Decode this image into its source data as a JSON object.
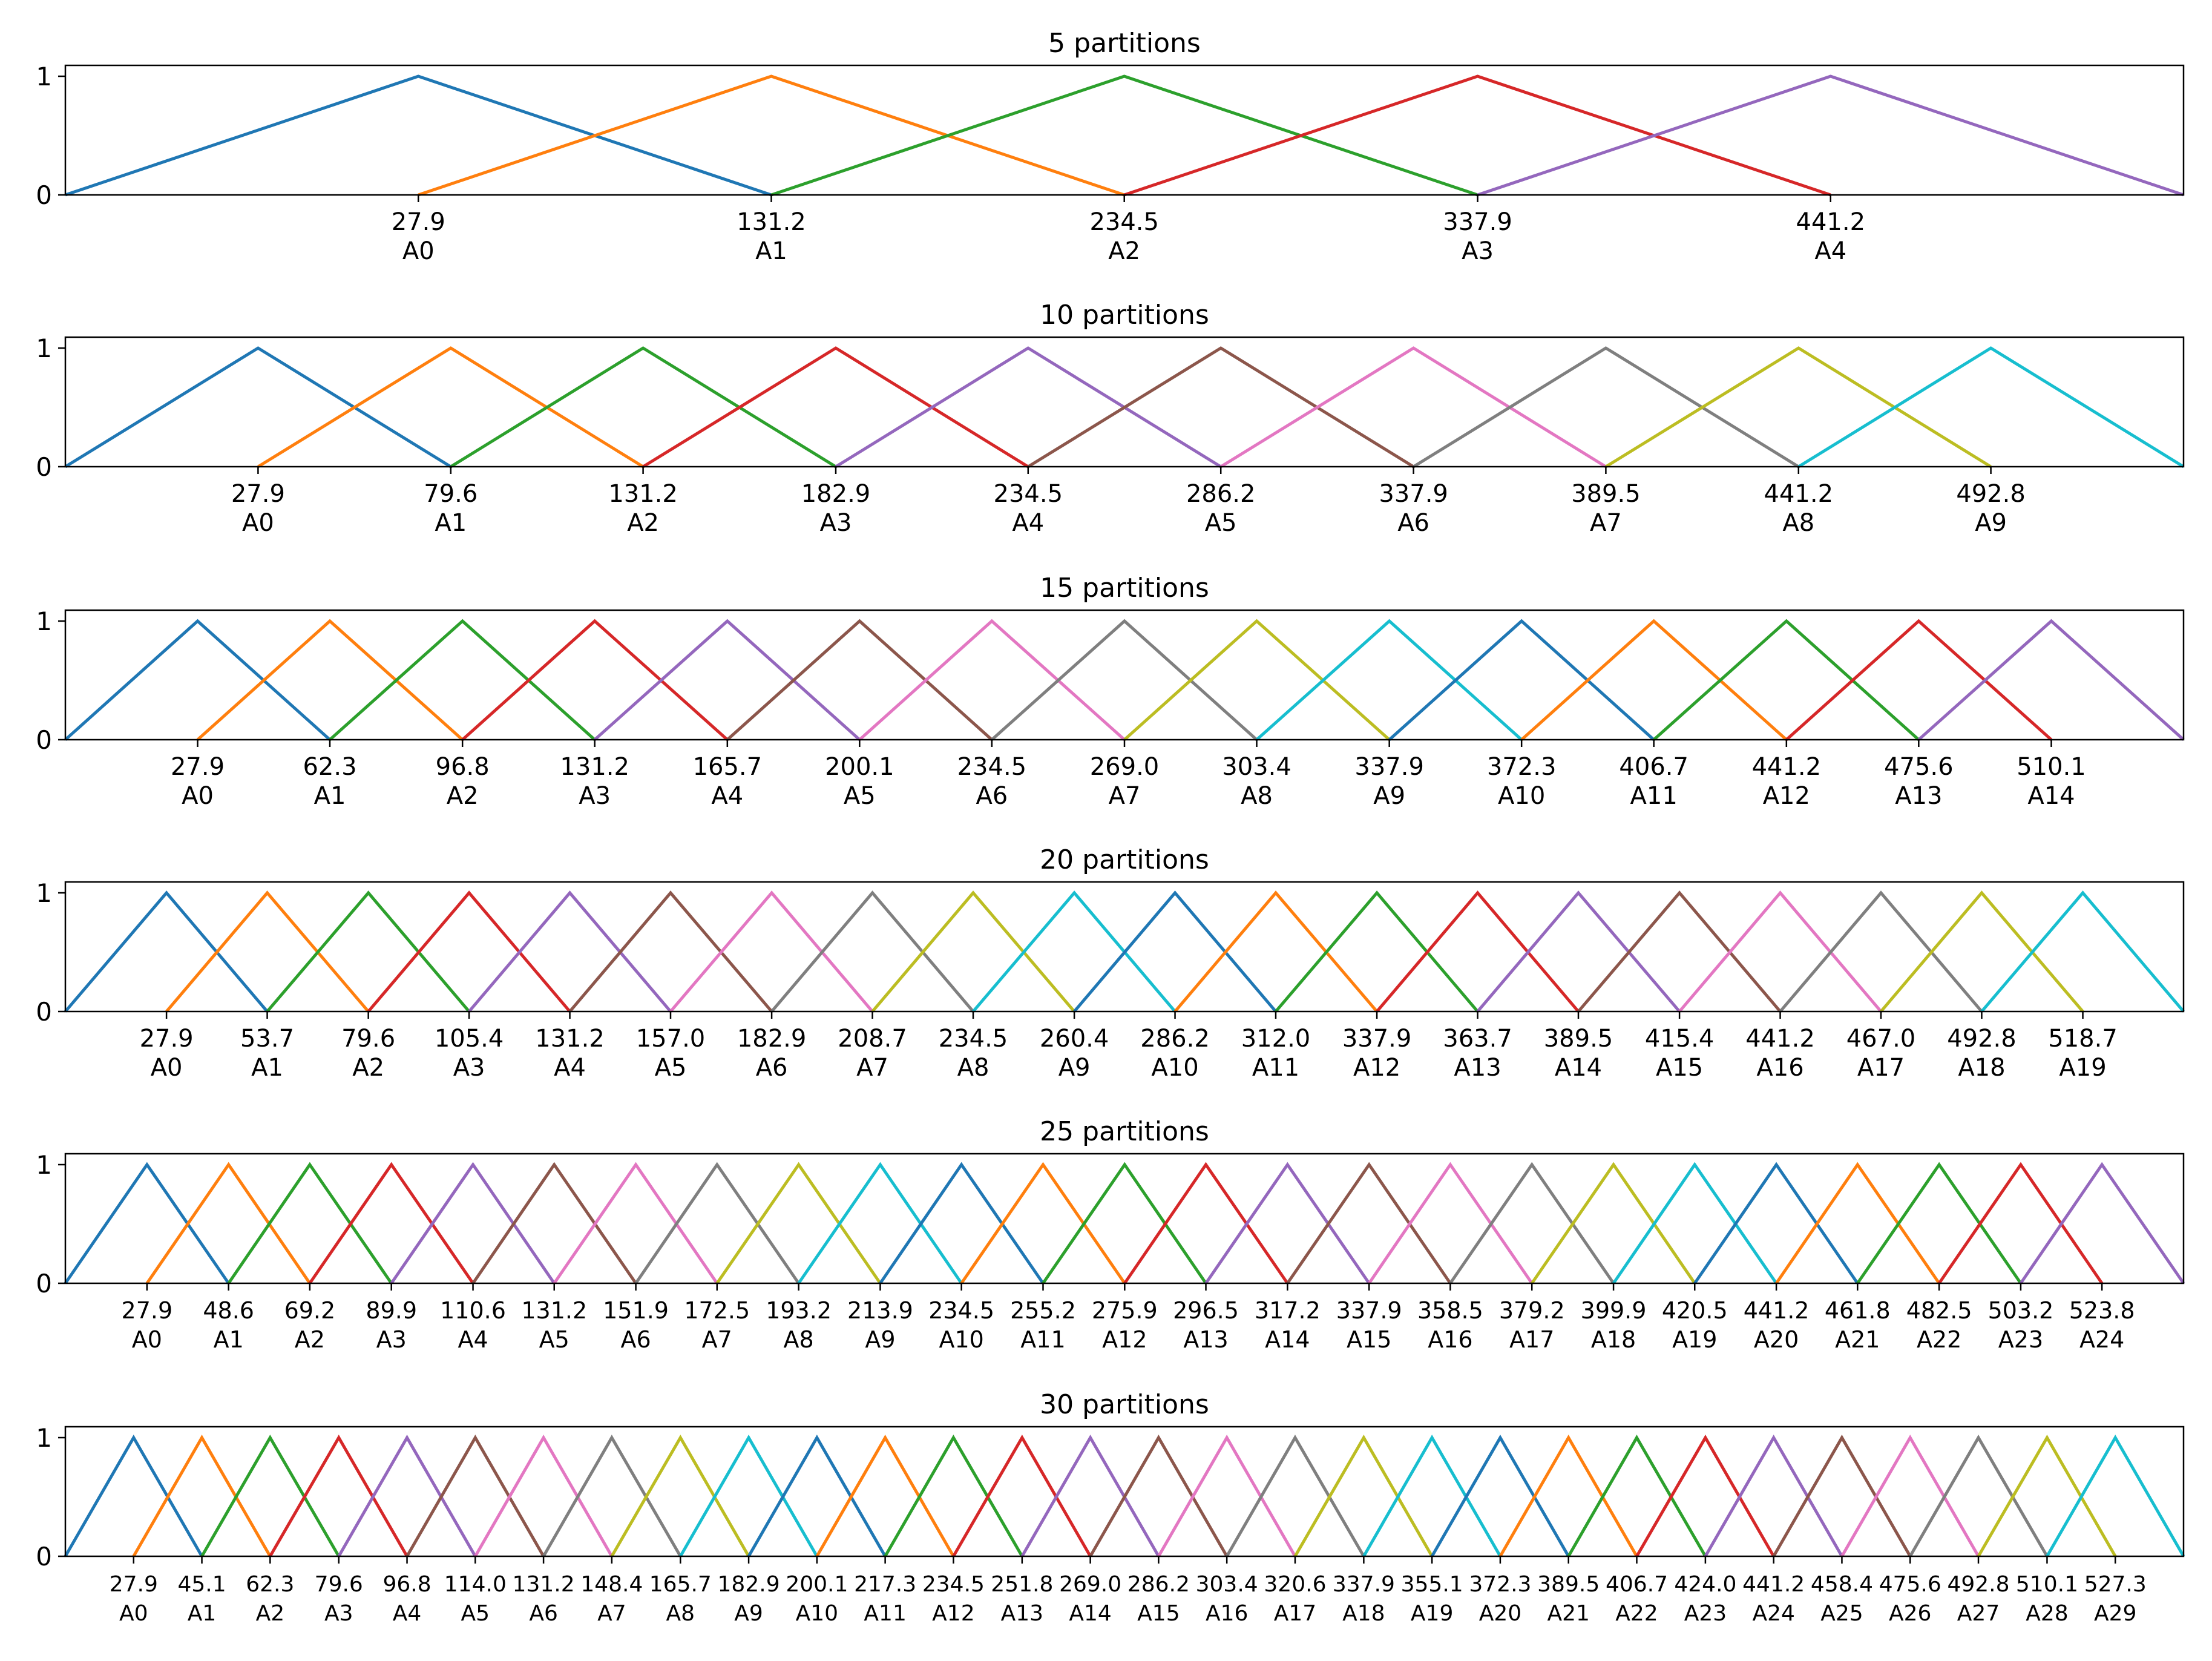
{
  "colors": [
    "#1f77b4",
    "#ff7f0e",
    "#2ca02c",
    "#d62728",
    "#9467bd",
    "#8c564b",
    "#e377c2",
    "#7f7f7f",
    "#bcbd22",
    "#17becf"
  ],
  "chart_data": [
    {
      "type": "line",
      "title": "5 partitions",
      "xlim": [
        -75.4,
        544.5
      ],
      "ylim": [
        0,
        1
      ],
      "yticks": [
        0,
        1
      ],
      "centers": [
        27.9,
        131.2,
        234.5,
        337.9,
        441.2
      ],
      "labels": [
        "A0",
        "A1",
        "A2",
        "A3",
        "A4"
      ]
    },
    {
      "type": "line",
      "title": "10 partitions",
      "xlim": [
        -23.8,
        544.5
      ],
      "ylim": [
        0,
        1
      ],
      "yticks": [
        0,
        1
      ],
      "centers": [
        27.9,
        79.6,
        131.2,
        182.9,
        234.5,
        286.2,
        337.9,
        389.5,
        441.2,
        492.8
      ],
      "labels": [
        "A0",
        "A1",
        "A2",
        "A3",
        "A4",
        "A5",
        "A6",
        "A7",
        "A8",
        "A9"
      ]
    },
    {
      "type": "line",
      "title": "15 partitions",
      "xlim": [
        -6.5,
        544.5
      ],
      "ylim": [
        0,
        1
      ],
      "yticks": [
        0,
        1
      ],
      "centers": [
        27.9,
        62.3,
        96.8,
        131.2,
        165.7,
        200.1,
        234.5,
        269.0,
        303.4,
        337.9,
        372.3,
        406.7,
        441.2,
        475.6,
        510.1
      ],
      "labels": [
        "A0",
        "A1",
        "A2",
        "A3",
        "A4",
        "A5",
        "A6",
        "A7",
        "A8",
        "A9",
        "A10",
        "A11",
        "A12",
        "A13",
        "A14"
      ]
    },
    {
      "type": "line",
      "title": "20 partitions",
      "xlim": [
        2.0,
        544.5
      ],
      "ylim": [
        0,
        1
      ],
      "yticks": [
        0,
        1
      ],
      "centers": [
        27.9,
        53.7,
        79.6,
        105.4,
        131.2,
        157.0,
        182.9,
        208.7,
        234.5,
        260.4,
        286.2,
        312.0,
        337.9,
        363.7,
        389.5,
        415.4,
        441.2,
        467.0,
        492.8,
        518.7
      ],
      "labels": [
        "A0",
        "A1",
        "A2",
        "A3",
        "A4",
        "A5",
        "A6",
        "A7",
        "A8",
        "A9",
        "A10",
        "A11",
        "A12",
        "A13",
        "A14",
        "A15",
        "A16",
        "A17",
        "A18",
        "A19"
      ]
    },
    {
      "type": "line",
      "title": "25 partitions",
      "xlim": [
        7.2,
        544.5
      ],
      "ylim": [
        0,
        1
      ],
      "yticks": [
        0,
        1
      ],
      "centers": [
        27.9,
        48.6,
        69.2,
        89.9,
        110.6,
        131.2,
        151.9,
        172.5,
        193.2,
        213.9,
        234.5,
        255.2,
        275.9,
        296.5,
        317.2,
        337.9,
        358.5,
        379.2,
        399.9,
        420.5,
        441.2,
        461.8,
        482.5,
        503.2,
        523.8
      ],
      "labels": [
        "A0",
        "A1",
        "A2",
        "A3",
        "A4",
        "A5",
        "A6",
        "A7",
        "A8",
        "A9",
        "A10",
        "A11",
        "A12",
        "A13",
        "A14",
        "A15",
        "A16",
        "A17",
        "A18",
        "A19",
        "A20",
        "A21",
        "A22",
        "A23",
        "A24"
      ]
    },
    {
      "type": "line",
      "title": "30 partitions",
      "xlim": [
        10.7,
        544.5
      ],
      "ylim": [
        0,
        1
      ],
      "yticks": [
        0,
        1
      ],
      "centers": [
        27.9,
        45.1,
        62.3,
        79.6,
        96.8,
        114.0,
        131.2,
        148.4,
        165.7,
        182.9,
        200.1,
        217.3,
        234.5,
        251.8,
        269.0,
        286.2,
        303.4,
        320.6,
        337.9,
        355.1,
        372.3,
        389.5,
        406.7,
        424.0,
        441.2,
        458.4,
        475.6,
        492.8,
        510.1,
        527.3
      ],
      "labels": [
        "A0",
        "A1",
        "A2",
        "A3",
        "A4",
        "A5",
        "A6",
        "A7",
        "A8",
        "A9",
        "A10",
        "A11",
        "A12",
        "A13",
        "A14",
        "A15",
        "A16",
        "A17",
        "A18",
        "A19",
        "A20",
        "A21",
        "A22",
        "A23",
        "A24",
        "A25",
        "A26",
        "A27",
        "A28",
        "A29"
      ]
    }
  ]
}
